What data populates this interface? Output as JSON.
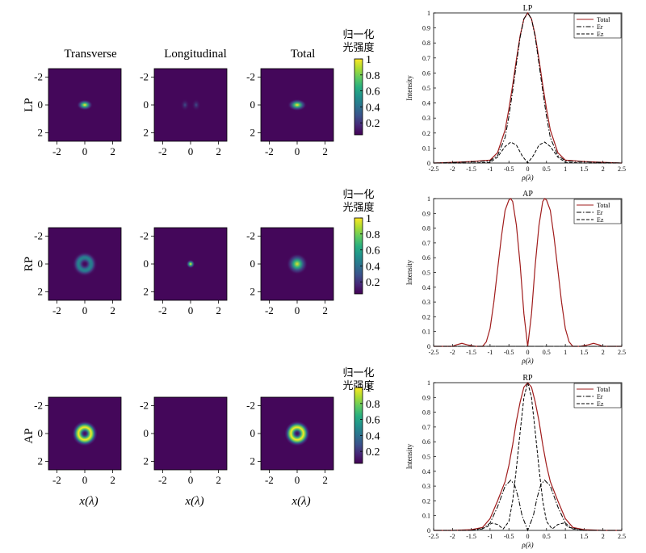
{
  "figure": {
    "column_titles": [
      "Transverse",
      "Longitudinal",
      "Total"
    ],
    "colorbar_label": [
      "归一化",
      "光强度"
    ],
    "xlabel_maps": "x(λ)"
  },
  "chart_data": [
    {
      "type": "heatmap",
      "row_label": "LP",
      "panels": [
        {
          "name": "Transverse",
          "pattern": "spot",
          "peak": 1.0,
          "width": 0.25,
          "aspect_x": 1.5
        },
        {
          "name": "Longitudinal",
          "pattern": "two-lobe",
          "peak": 0.14,
          "lobe_offset": 0.4,
          "width": 0.2
        },
        {
          "name": "Total",
          "pattern": "spot",
          "peak": 1.0,
          "width": 0.28,
          "aspect_x": 1.6
        }
      ],
      "xticks": [
        -2,
        0,
        2
      ],
      "yticks": [
        -2,
        0,
        2
      ],
      "xlim": [
        -2.6,
        2.6
      ],
      "ylim": [
        -2.6,
        2.6
      ],
      "colorbar": {
        "ticks": [
          0.2,
          0.4,
          0.6,
          0.8,
          1
        ],
        "range": [
          0.05,
          1
        ],
        "colormap": "viridis"
      }
    },
    {
      "type": "heatmap",
      "row_label": "RP",
      "panels": [
        {
          "name": "Transverse",
          "pattern": "ring",
          "peak": 0.45,
          "radius": 0.45,
          "width": 0.22
        },
        {
          "name": "Longitudinal",
          "pattern": "spot",
          "peak": 1.0,
          "width": 0.2,
          "aspect_x": 1.0
        },
        {
          "name": "Total",
          "pattern": "spot",
          "peak": 0.95,
          "width": 0.5,
          "aspect_x": 1.0
        }
      ],
      "xticks": [
        -2,
        0,
        2
      ],
      "yticks": [
        -2,
        0,
        2
      ],
      "xlim": [
        -2.6,
        2.6
      ],
      "ylim": [
        -2.6,
        2.6
      ],
      "colorbar": {
        "ticks": [
          0.2,
          0.4,
          0.6,
          0.8,
          1
        ],
        "range": [
          0.05,
          1
        ],
        "colormap": "viridis"
      }
    },
    {
      "type": "heatmap",
      "row_label": "AP",
      "panels": [
        {
          "name": "Transverse",
          "pattern": "ring",
          "peak": 1.0,
          "radius": 0.45,
          "width": 0.22
        },
        {
          "name": "Longitudinal",
          "pattern": "empty",
          "peak": 0.0
        },
        {
          "name": "Total",
          "pattern": "ring",
          "peak": 1.0,
          "radius": 0.45,
          "width": 0.22
        }
      ],
      "xticks": [
        -2,
        0,
        2
      ],
      "yticks": [
        -2,
        0,
        2
      ],
      "xlim": [
        -2.6,
        2.6
      ],
      "ylim": [
        -2.6,
        2.6
      ],
      "colorbar": {
        "ticks": [
          0.2,
          0.4,
          0.6,
          0.8,
          1
        ],
        "range": [
          0.05,
          1
        ],
        "colormap": "viridis"
      }
    },
    {
      "type": "line",
      "title": "LP",
      "xlabel": "ρ(λ)",
      "ylabel": "Intensity",
      "xlim": [
        -2.5,
        2.5
      ],
      "ylim": [
        0,
        1
      ],
      "xticks": [
        -2.5,
        -2,
        -1.5,
        -1,
        -0.5,
        0,
        0.5,
        1,
        1.5,
        2,
        2.5
      ],
      "yticks": [
        0,
        0.1,
        0.2,
        0.3,
        0.4,
        0.5,
        0.6,
        0.7,
        0.8,
        0.9,
        1
      ],
      "legend": "top-right",
      "series": [
        {
          "name": "Total",
          "color": "#a01c1c",
          "dash": "solid",
          "x": [
            -2.5,
            -2,
            -1.5,
            -1,
            -0.8,
            -0.6,
            -0.5,
            -0.4,
            -0.3,
            -0.2,
            -0.1,
            0,
            0.1,
            0.2,
            0.3,
            0.4,
            0.5,
            0.6,
            0.8,
            1,
            1.5,
            2,
            2.5
          ],
          "y": [
            0,
            0.005,
            0.01,
            0.02,
            0.07,
            0.22,
            0.36,
            0.52,
            0.69,
            0.85,
            0.96,
            1.0,
            0.96,
            0.85,
            0.69,
            0.52,
            0.36,
            0.22,
            0.07,
            0.02,
            0.01,
            0.005,
            0
          ]
        },
        {
          "name": "Er",
          "color": "#000000",
          "dash": "dashdot",
          "x": [
            -2.5,
            -2,
            -1.5,
            -1,
            -0.8,
            -0.6,
            -0.5,
            -0.4,
            -0.3,
            -0.2,
            -0.1,
            0,
            0.1,
            0.2,
            0.3,
            0.4,
            0.5,
            0.6,
            0.8,
            1,
            1.5,
            2,
            2.5
          ],
          "y": [
            0,
            0.004,
            0.008,
            0.015,
            0.05,
            0.17,
            0.31,
            0.48,
            0.66,
            0.84,
            0.96,
            1.0,
            0.96,
            0.84,
            0.66,
            0.48,
            0.31,
            0.17,
            0.05,
            0.015,
            0.008,
            0.004,
            0
          ]
        },
        {
          "name": "Ez",
          "color": "#000000",
          "dash": "dashed",
          "x": [
            -2.5,
            -1.5,
            -1,
            -0.8,
            -0.6,
            -0.45,
            -0.3,
            -0.15,
            0,
            0.15,
            0.3,
            0.45,
            0.6,
            0.8,
            1,
            1.5,
            2.5
          ],
          "y": [
            0,
            0,
            0.005,
            0.04,
            0.11,
            0.14,
            0.12,
            0.05,
            0,
            0.05,
            0.12,
            0.14,
            0.11,
            0.04,
            0.005,
            0,
            0
          ]
        }
      ]
    },
    {
      "type": "line",
      "title": "AP",
      "xlabel": "ρ(λ)",
      "ylabel": "Intensity",
      "xlim": [
        -2.5,
        2.5
      ],
      "ylim": [
        0,
        1
      ],
      "xticks": [
        -2.5,
        -2,
        -1.5,
        -1,
        -0.5,
        0,
        0.5,
        1,
        1.5,
        2,
        2.5
      ],
      "yticks": [
        0,
        0.1,
        0.2,
        0.3,
        0.4,
        0.5,
        0.6,
        0.7,
        0.8,
        0.9,
        1
      ],
      "legend": "top-right",
      "series": [
        {
          "name": "Total",
          "color": "#a01c1c",
          "dash": "solid",
          "x": [
            -2.5,
            -2.0,
            -1.9,
            -1.75,
            -1.6,
            -1.4,
            -1.2,
            -1.1,
            -1.0,
            -0.9,
            -0.8,
            -0.7,
            -0.6,
            -0.5,
            -0.45,
            -0.4,
            -0.3,
            -0.2,
            -0.1,
            0,
            0.1,
            0.2,
            0.3,
            0.4,
            0.45,
            0.5,
            0.6,
            0.7,
            0.8,
            0.9,
            1.0,
            1.1,
            1.2,
            1.4,
            1.6,
            1.75,
            1.9,
            2.0,
            2.5
          ],
          "y": [
            0,
            0,
            0.01,
            0.02,
            0.01,
            0,
            0,
            0.03,
            0.12,
            0.3,
            0.52,
            0.74,
            0.92,
            0.99,
            1.0,
            0.98,
            0.82,
            0.55,
            0.22,
            0,
            0.22,
            0.55,
            0.82,
            0.98,
            1.0,
            0.99,
            0.92,
            0.74,
            0.52,
            0.3,
            0.12,
            0.03,
            0,
            0,
            0.01,
            0.02,
            0.01,
            0,
            0
          ]
        },
        {
          "name": "Er",
          "color": "#000000",
          "dash": "dashdot",
          "x": [
            -2.5,
            2.5
          ],
          "y": [
            0,
            0
          ]
        },
        {
          "name": "Ez",
          "color": "#000000",
          "dash": "dashed",
          "x": [
            -2.5,
            2.5
          ],
          "y": [
            0,
            0
          ]
        }
      ]
    },
    {
      "type": "line",
      "title": "RP",
      "xlabel": "ρ(λ)",
      "ylabel": "Intensity",
      "xlim": [
        -2.5,
        2.5
      ],
      "ylim": [
        0,
        1
      ],
      "xticks": [
        -2.5,
        -2,
        -1.5,
        -1,
        -0.5,
        0,
        0.5,
        1,
        1.5,
        2,
        2.5
      ],
      "yticks": [
        0,
        0.1,
        0.2,
        0.3,
        0.4,
        0.5,
        0.6,
        0.7,
        0.8,
        0.9,
        1
      ],
      "legend": "top-right",
      "series": [
        {
          "name": "Total",
          "color": "#a01c1c",
          "dash": "solid",
          "x": [
            -2.5,
            -2,
            -1.5,
            -1.2,
            -1.0,
            -0.8,
            -0.6,
            -0.5,
            -0.4,
            -0.3,
            -0.2,
            -0.1,
            0,
            0.1,
            0.2,
            0.3,
            0.4,
            0.5,
            0.6,
            0.8,
            1.0,
            1.2,
            1.5,
            2,
            2.5
          ],
          "y": [
            0,
            0,
            0.005,
            0.02,
            0.08,
            0.2,
            0.33,
            0.44,
            0.58,
            0.74,
            0.87,
            0.97,
            1.0,
            0.97,
            0.87,
            0.74,
            0.58,
            0.44,
            0.33,
            0.2,
            0.08,
            0.02,
            0.005,
            0,
            0
          ]
        },
        {
          "name": "Er",
          "color": "#000000",
          "dash": "dashdot",
          "x": [
            -2.5,
            -1.5,
            -1.2,
            -1.0,
            -0.8,
            -0.6,
            -0.45,
            -0.35,
            -0.25,
            -0.15,
            0,
            0.15,
            0.25,
            0.35,
            0.45,
            0.6,
            0.8,
            1.0,
            1.2,
            1.5,
            2.5
          ],
          "y": [
            0,
            0,
            0.01,
            0.05,
            0.16,
            0.3,
            0.34,
            0.31,
            0.22,
            0.1,
            0,
            0.1,
            0.22,
            0.31,
            0.34,
            0.3,
            0.16,
            0.05,
            0.01,
            0,
            0
          ]
        },
        {
          "name": "Ez",
          "color": "#000000",
          "dash": "dashed",
          "x": [
            -2.5,
            -1.5,
            -1.1,
            -0.95,
            -0.8,
            -0.65,
            -0.5,
            -0.4,
            -0.3,
            -0.2,
            -0.1,
            0,
            0.1,
            0.2,
            0.3,
            0.4,
            0.5,
            0.65,
            0.8,
            0.95,
            1.1,
            1.5,
            2.5
          ],
          "y": [
            0,
            0,
            0.02,
            0.05,
            0.04,
            0.01,
            0.06,
            0.2,
            0.42,
            0.67,
            0.9,
            1.0,
            0.9,
            0.67,
            0.42,
            0.2,
            0.06,
            0.01,
            0.04,
            0.05,
            0.02,
            0,
            0
          ]
        }
      ]
    }
  ]
}
